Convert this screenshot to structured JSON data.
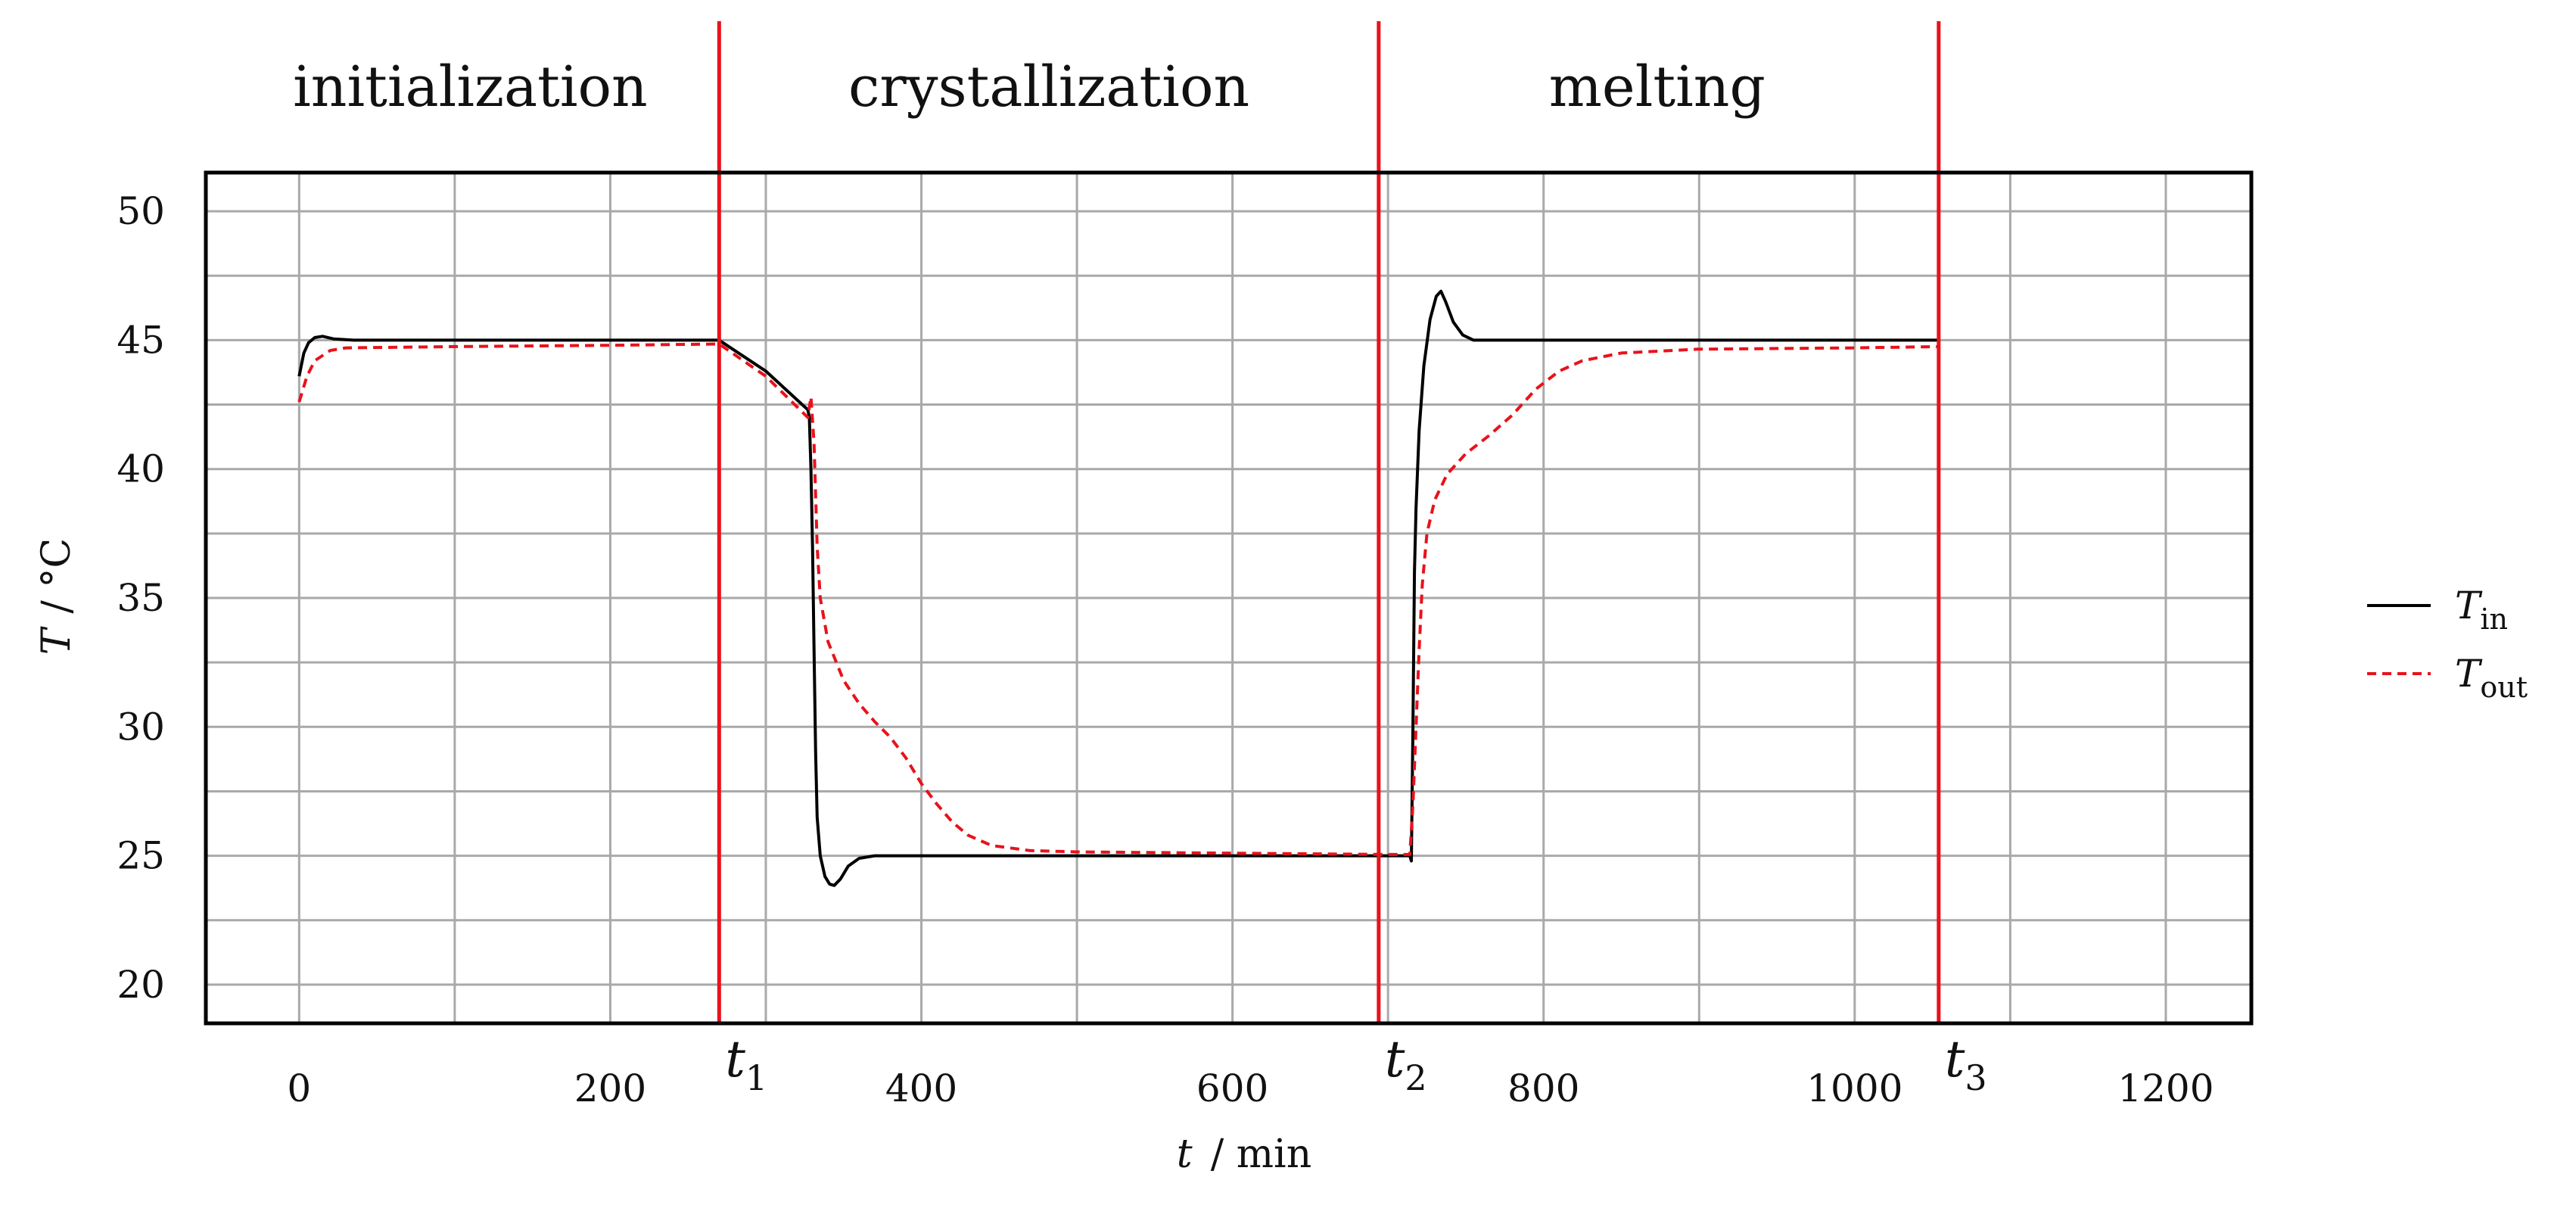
{
  "chart_data": {
    "type": "line",
    "title": "",
    "xlabel": {
      "var": "t",
      "unit": "/ min"
    },
    "ylabel": {
      "var": "T",
      "unit": "/ °C"
    },
    "xlim": [
      -60,
      1255
    ],
    "ylim": [
      18.5,
      51.5
    ],
    "x_ticks": [
      0,
      200,
      400,
      600,
      800,
      1000,
      1200
    ],
    "y_ticks": [
      20,
      25,
      30,
      35,
      40,
      45,
      50
    ],
    "x_grid": [
      0,
      100,
      200,
      300,
      400,
      500,
      600,
      700,
      800,
      900,
      1000,
      1100,
      1200
    ],
    "y_grid": [
      20,
      22.5,
      25,
      27.5,
      30,
      32.5,
      35,
      37.5,
      40,
      42.5,
      45,
      47.5,
      50
    ],
    "phases": [
      {
        "label": "initialization",
        "x_center": 110
      },
      {
        "label": "crystallization",
        "x_center": 482
      },
      {
        "label": "melting",
        "x_center": 873
      }
    ],
    "markers": [
      {
        "var": "t",
        "sub": "1",
        "x": 270
      },
      {
        "var": "t",
        "sub": "2",
        "x": 694
      },
      {
        "var": "t",
        "sub": "3",
        "x": 1054
      }
    ],
    "marker_color": "#e8121b",
    "series": [
      {
        "name": "T",
        "sub": "in",
        "color": "#000000",
        "dash": "solid",
        "points": [
          [
            0,
            43.6
          ],
          [
            3,
            44.5
          ],
          [
            6,
            44.9
          ],
          [
            10,
            45.1
          ],
          [
            15,
            45.15
          ],
          [
            22,
            45.05
          ],
          [
            35,
            45.0
          ],
          [
            100,
            45.0
          ],
          [
            200,
            45.0
          ],
          [
            270,
            45.0
          ],
          [
            300,
            43.8
          ],
          [
            327,
            42.3
          ],
          [
            328,
            42.0
          ],
          [
            329,
            40
          ],
          [
            330,
            37
          ],
          [
            331,
            33
          ],
          [
            332,
            29
          ],
          [
            333,
            26.5
          ],
          [
            335,
            25
          ],
          [
            338,
            24.2
          ],
          [
            341,
            23.9
          ],
          [
            344,
            23.85
          ],
          [
            348,
            24.1
          ],
          [
            353,
            24.6
          ],
          [
            360,
            24.9
          ],
          [
            370,
            25.0
          ],
          [
            400,
            25.0
          ],
          [
            500,
            25.0
          ],
          [
            600,
            25.0
          ],
          [
            694,
            25.0
          ],
          [
            714,
            25.0
          ],
          [
            715,
            24.8
          ],
          [
            716,
            30
          ],
          [
            717,
            36
          ],
          [
            718,
            38.5
          ],
          [
            720,
            41.5
          ],
          [
            723,
            44
          ],
          [
            727,
            45.8
          ],
          [
            731,
            46.7
          ],
          [
            734,
            46.9
          ],
          [
            737,
            46.5
          ],
          [
            742,
            45.7
          ],
          [
            748,
            45.2
          ],
          [
            755,
            45.0
          ],
          [
            800,
            45.0
          ],
          [
            900,
            45.0
          ],
          [
            1000,
            45.0
          ],
          [
            1054,
            45.0
          ]
        ]
      },
      {
        "name": "T",
        "sub": "out",
        "color": "#e8121b",
        "dash": "dashed",
        "points": [
          [
            0,
            42.6
          ],
          [
            5,
            43.6
          ],
          [
            10,
            44.2
          ],
          [
            20,
            44.6
          ],
          [
            30,
            44.7
          ],
          [
            100,
            44.75
          ],
          [
            200,
            44.8
          ],
          [
            270,
            44.85
          ],
          [
            300,
            43.6
          ],
          [
            327,
            42.0
          ],
          [
            329,
            42.8
          ],
          [
            331,
            41
          ],
          [
            333,
            37
          ],
          [
            335,
            35
          ],
          [
            340,
            33.3
          ],
          [
            350,
            31.8
          ],
          [
            360,
            30.9
          ],
          [
            370,
            30.2
          ],
          [
            380,
            29.6
          ],
          [
            390,
            28.8
          ],
          [
            400,
            27.8
          ],
          [
            410,
            27.0
          ],
          [
            420,
            26.3
          ],
          [
            430,
            25.8
          ],
          [
            445,
            25.4
          ],
          [
            470,
            25.2
          ],
          [
            500,
            25.15
          ],
          [
            600,
            25.1
          ],
          [
            700,
            25.05
          ],
          [
            714,
            25.05
          ],
          [
            716,
            27
          ],
          [
            718,
            30
          ],
          [
            720,
            33
          ],
          [
            722,
            35.5
          ],
          [
            725,
            37.5
          ],
          [
            730,
            38.8
          ],
          [
            738,
            39.8
          ],
          [
            750,
            40.6
          ],
          [
            765,
            41.3
          ],
          [
            780,
            42.1
          ],
          [
            795,
            43.1
          ],
          [
            810,
            43.8
          ],
          [
            825,
            44.2
          ],
          [
            850,
            44.5
          ],
          [
            900,
            44.65
          ],
          [
            1000,
            44.7
          ],
          [
            1054,
            44.75
          ]
        ]
      }
    ],
    "legend": "right"
  }
}
